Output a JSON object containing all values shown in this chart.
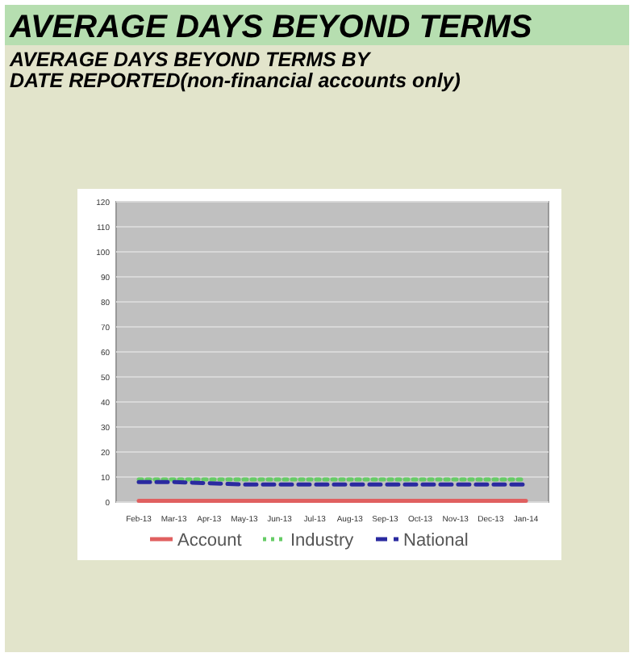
{
  "chart_data": {
    "type": "line",
    "title": "AVERAGE DAYS BEYOND TERMS",
    "subtitle": "AVERAGE DAYS BEYOND TERMS BY\nDATE REPORTED(non-financial accounts only)",
    "categories": [
      "Feb-13",
      "Mar-13",
      "Apr-13",
      "May-13",
      "Jun-13",
      "Jul-13",
      "Aug-13",
      "Sep-13",
      "Oct-13",
      "Nov-13",
      "Dec-13",
      "Jan-14"
    ],
    "series": [
      {
        "name": "Account",
        "color": "#e06060",
        "line_style": "solid",
        "values": [
          0.5,
          0.5,
          0.5,
          0.5,
          0.5,
          0.5,
          0.5,
          0.5,
          0.5,
          0.5,
          0.5,
          0.5
        ]
      },
      {
        "name": "Industry",
        "color": "#66cc66",
        "line_style": "dotted",
        "values": [
          9,
          9,
          9,
          9,
          9,
          9,
          9,
          9,
          9,
          9,
          9,
          9
        ]
      },
      {
        "name": "National",
        "color": "#2a2aa0",
        "line_style": "dashed",
        "values": [
          8,
          8,
          7.5,
          7,
          7,
          7,
          7,
          7,
          7,
          7,
          7,
          7
        ]
      }
    ],
    "ylim": [
      0,
      120
    ],
    "yticks": [
      0,
      10,
      20,
      30,
      40,
      50,
      60,
      70,
      80,
      90,
      100,
      110,
      120
    ],
    "grid": "y",
    "legend": "bottom"
  }
}
